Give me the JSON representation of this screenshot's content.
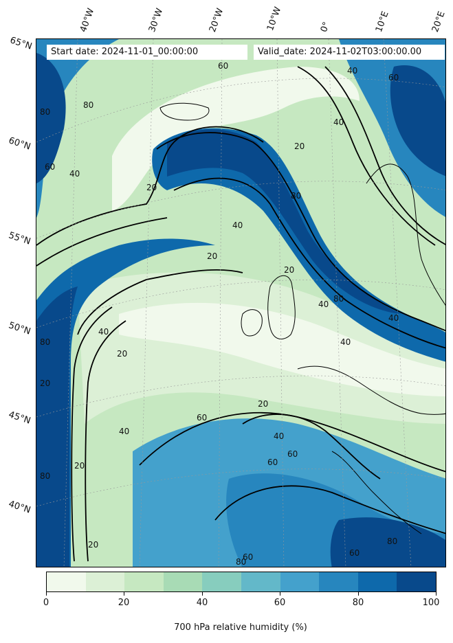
{
  "header": {
    "start_date": "Start date: 2024-11-01_00:00:00",
    "valid_date": "Valid_date: 2024-11-02T03:00:00.00"
  },
  "map": {
    "projection": "conic",
    "lat_labels": [
      "65°N",
      "60°N",
      "55°N",
      "50°N",
      "45°N",
      "40°N"
    ],
    "lon_labels": [
      "40°W",
      "30°W",
      "20°W",
      "10°W",
      "0°",
      "10°E",
      "20°E"
    ],
    "contour_labels": [
      "60",
      "40",
      "60",
      "80",
      "40",
      "20",
      "80",
      "60",
      "40",
      "20",
      "20",
      "40",
      "80",
      "20",
      "40",
      "80",
      "40",
      "40",
      "20",
      "80",
      "20",
      "40",
      "60",
      "40",
      "60",
      "20",
      "40",
      "20",
      "60",
      "80",
      "60",
      "80",
      "60",
      "20",
      "80"
    ],
    "shading_colors": [
      "#f1f9ec",
      "#dcf0d6",
      "#c6e8c1",
      "#a8dbb5",
      "#87cdbe",
      "#63b8c9",
      "#44a1cc",
      "#2786be",
      "#0e69ab",
      "#08498b"
    ]
  },
  "colorbar": {
    "title": "700 hPa relative humidity (%)",
    "ticks": [
      "0",
      "20",
      "40",
      "60",
      "80",
      "100"
    ],
    "colors": [
      "#f1f9ec",
      "#dcf0d6",
      "#c6e8c1",
      "#a8dbb5",
      "#87cdbe",
      "#63b8c9",
      "#44a1cc",
      "#2786be",
      "#0e69ab",
      "#08498b"
    ]
  }
}
